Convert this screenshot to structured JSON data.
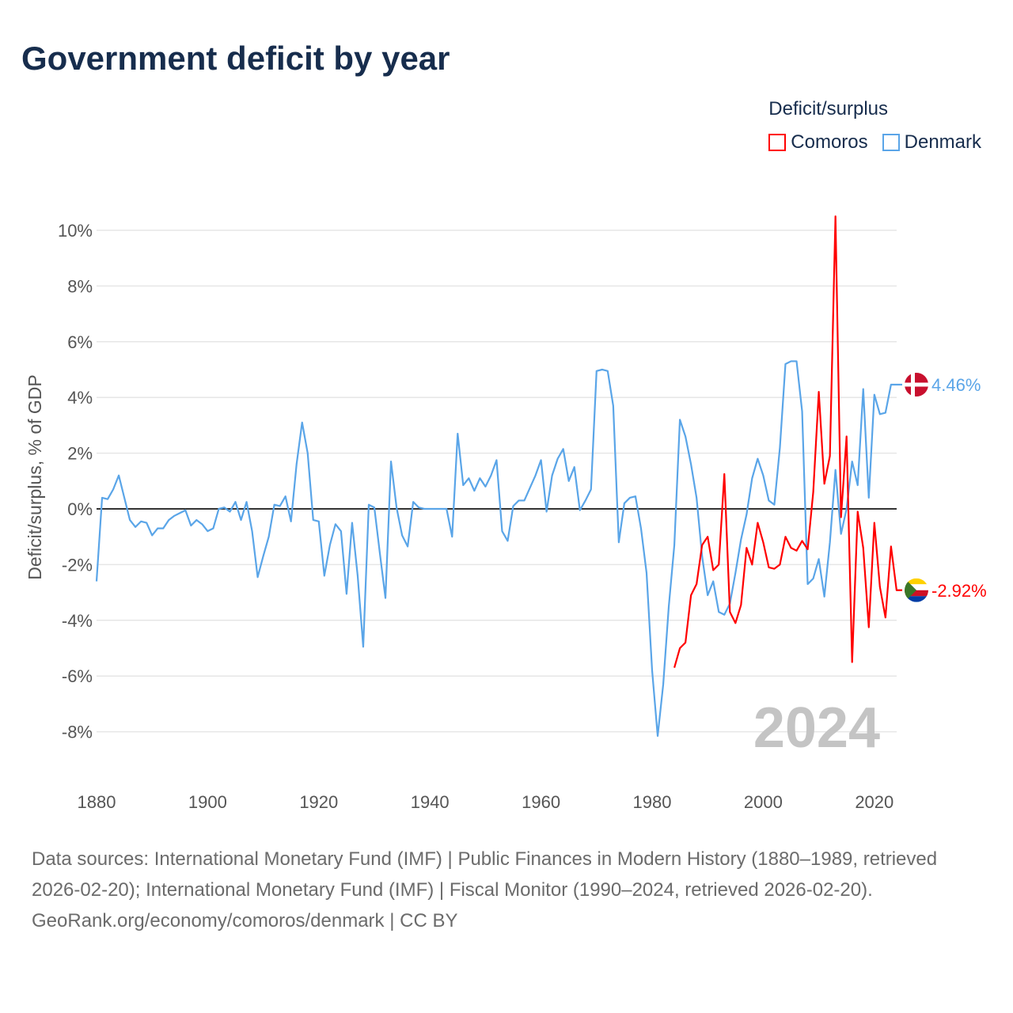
{
  "title": "Government deficit by year",
  "legend": {
    "title": "Deficit/surplus",
    "items": [
      {
        "name": "Comoros",
        "color": "#ff0000"
      },
      {
        "name": "Denmark",
        "color": "#5aa5e8"
      }
    ]
  },
  "year_label": "2024",
  "footer": {
    "sources": "Data sources: International Monetary Fund (IMF) | Public Finances in Modern History (1880–1989, retrieved 2026-02-20); International Monetary Fund (IMF) | Fiscal Monitor (1990–2024, retrieved 2026-02-20).",
    "credit": "GeoRank.org/economy/comoros/denmark | CC BY"
  },
  "chart_data": {
    "type": "line",
    "title": "Government deficit by year",
    "xlabel": "",
    "ylabel": "Deficit/surplus, % of GDP",
    "xlim": [
      1880,
      2024
    ],
    "ylim": [
      -9,
      10.5
    ],
    "x_ticks": [
      "1880",
      "1900",
      "1920",
      "1940",
      "1960",
      "1980",
      "2000",
      "2020"
    ],
    "y_ticks": [
      "-8%",
      "-6%",
      "-4%",
      "-2%",
      "0%",
      "2%",
      "4%",
      "6%",
      "8%",
      "10%"
    ],
    "grid": true,
    "legend_position": "top-right",
    "series": [
      {
        "name": "Denmark",
        "color": "#5aa5e8",
        "end_label": "4.46%",
        "start_year": 1880,
        "values": [
          -2.6,
          0.4,
          0.35,
          0.7,
          1.2,
          0.4,
          -0.4,
          -0.65,
          -0.45,
          -0.5,
          -0.95,
          -0.7,
          -0.7,
          -0.4,
          -0.25,
          -0.15,
          -0.05,
          -0.6,
          -0.4,
          -0.55,
          -0.8,
          -0.7,
          0.0,
          0.05,
          -0.1,
          0.25,
          -0.4,
          0.25,
          -0.8,
          -2.45,
          -1.7,
          -1.0,
          0.15,
          0.1,
          0.45,
          -0.45,
          1.6,
          3.1,
          2.0,
          -0.4,
          -0.45,
          -2.4,
          -1.3,
          -0.55,
          -0.8,
          -3.05,
          -0.5,
          -2.4,
          -4.95,
          0.15,
          0.05,
          -1.6,
          -3.2,
          1.7,
          0.05,
          -0.95,
          -1.35,
          0.25,
          0.05,
          0,
          0,
          0,
          0,
          0,
          -1.0,
          2.7,
          0.85,
          1.1,
          0.65,
          1.1,
          0.8,
          1.2,
          1.75,
          -0.8,
          -1.15,
          0.1,
          0.3,
          0.3,
          0.75,
          1.2,
          1.75,
          -0.1,
          1.2,
          1.8,
          2.15,
          1.0,
          1.5,
          -0.05,
          0.3,
          0.7,
          4.95,
          5.0,
          4.95,
          3.7,
          -1.2,
          0.2,
          0.4,
          0.45,
          -0.7,
          -2.3,
          -5.8,
          -8.15,
          -6.3,
          -3.5,
          -1.3,
          3.2,
          2.6,
          1.6,
          0.4,
          -1.7,
          -3.1,
          -2.6,
          -3.7,
          -3.8,
          -3.4,
          -2.3,
          -1.1,
          -0.2,
          1.1,
          1.8,
          1.2,
          0.3,
          0.15,
          2.2,
          5.2,
          5.3,
          5.3,
          3.5,
          -2.7,
          -2.5,
          -1.8,
          -3.15,
          -1.2,
          1.4,
          -0.9,
          0.0,
          1.7,
          0.85,
          4.3,
          0.4,
          4.1,
          3.4,
          3.45,
          4.46,
          4.46
        ]
      },
      {
        "name": "Comoros",
        "color": "#ff0000",
        "end_label": "-2.92%",
        "start_year": 1984,
        "values": [
          -5.7,
          -5.0,
          -4.8,
          -3.1,
          -2.7,
          -1.3,
          -1.0,
          -2.2,
          -2.0,
          1.25,
          -3.7,
          -4.1,
          -3.45,
          -1.4,
          -2.0,
          -0.5,
          -1.2,
          -2.1,
          -2.15,
          -2.0,
          -1.0,
          -1.4,
          -1.5,
          -1.15,
          -1.45,
          0.6,
          4.2,
          0.9,
          1.9,
          10.5,
          -0.3,
          2.6,
          -5.5,
          -0.1,
          -1.4,
          -4.25,
          -0.5,
          -2.8,
          -3.9,
          -1.35,
          -2.92
        ]
      }
    ]
  }
}
